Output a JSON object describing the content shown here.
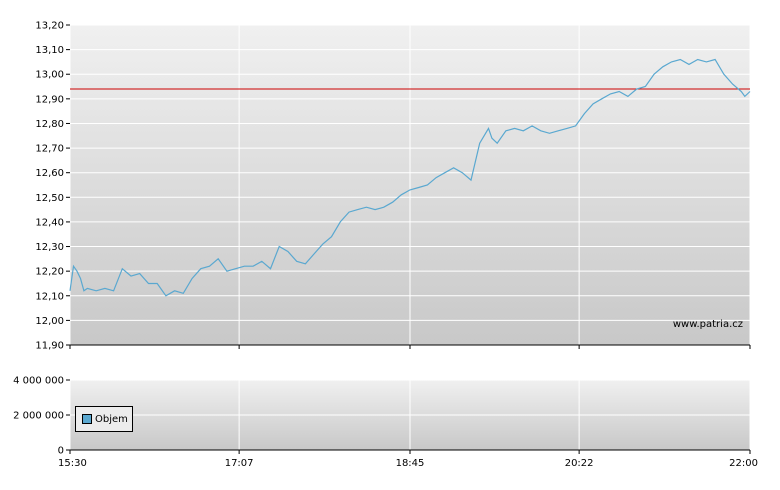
{
  "chart_data": [
    {
      "type": "line",
      "colors": {
        "line": "#5aa8d0",
        "reference": "#cc0000"
      },
      "x_ticks": [
        "15:30",
        "17:07",
        "18:45",
        "20:22",
        "22:00"
      ],
      "xlim": [
        "15:30",
        "22:00"
      ],
      "y_ticks": [
        "11,90",
        "12,00",
        "12,10",
        "12,20",
        "12,30",
        "12,40",
        "12,50",
        "12,60",
        "12,70",
        "12,80",
        "12,90",
        "13,00",
        "13,10",
        "13,20"
      ],
      "ylim": [
        11.9,
        13.2
      ],
      "reference_line": 12.94,
      "grid": true,
      "watermark": "www.patria.cz",
      "series": [
        {
          "x": [
            "15:30",
            "15:32",
            "15:34",
            "15:36",
            "15:38",
            "15:40",
            "15:45",
            "15:50",
            "15:55",
            "16:00",
            "16:05",
            "16:10",
            "16:15",
            "16:20",
            "16:25",
            "16:30",
            "16:35",
            "16:40",
            "16:45",
            "16:50",
            "16:55",
            "17:00",
            "17:05",
            "17:10",
            "17:15",
            "17:20",
            "17:25",
            "17:30",
            "17:35",
            "17:40",
            "17:45",
            "17:50",
            "17:55",
            "18:00",
            "18:05",
            "18:10",
            "18:15",
            "18:20",
            "18:25",
            "18:30",
            "18:35",
            "18:40",
            "18:45",
            "18:50",
            "18:55",
            "19:00",
            "19:05",
            "19:10",
            "19:15",
            "19:20",
            "19:25",
            "19:30",
            "19:32",
            "19:35",
            "19:40",
            "19:45",
            "19:50",
            "19:55",
            "20:00",
            "20:05",
            "20:10",
            "20:15",
            "20:20",
            "20:25",
            "20:30",
            "20:35",
            "20:40",
            "20:45",
            "20:50",
            "20:55",
            "21:00",
            "21:05",
            "21:10",
            "21:15",
            "21:20",
            "21:25",
            "21:30",
            "21:35",
            "21:40",
            "21:45",
            "21:50",
            "21:55",
            "21:57",
            "22:00"
          ],
          "y": [
            12.12,
            12.22,
            12.2,
            12.17,
            12.12,
            12.13,
            12.12,
            12.13,
            12.12,
            12.21,
            12.18,
            12.19,
            12.15,
            12.15,
            12.1,
            12.12,
            12.11,
            12.17,
            12.21,
            12.22,
            12.25,
            12.2,
            12.21,
            12.22,
            12.22,
            12.24,
            12.21,
            12.3,
            12.28,
            12.24,
            12.23,
            12.27,
            12.31,
            12.34,
            12.4,
            12.44,
            12.45,
            12.46,
            12.45,
            12.46,
            12.48,
            12.51,
            12.53,
            12.54,
            12.55,
            12.58,
            12.6,
            12.62,
            12.6,
            12.57,
            12.72,
            12.78,
            12.74,
            12.72,
            12.77,
            12.78,
            12.77,
            12.79,
            12.77,
            12.76,
            12.77,
            12.78,
            12.79,
            12.84,
            12.88,
            12.9,
            12.92,
            12.93,
            12.91,
            12.94,
            12.95,
            13.0,
            13.03,
            13.05,
            13.06,
            13.04,
            13.06,
            13.05,
            13.06,
            13.0,
            12.96,
            12.93,
            12.91,
            12.93
          ]
        }
      ]
    },
    {
      "type": "bar",
      "y_ticks": [
        "0",
        "2 000 000",
        "4 000 000"
      ],
      "ylim": [
        0,
        4000000
      ],
      "legend_placement": "bottom-left",
      "series": [
        {
          "name": "Objem",
          "color": "#5aa8d0",
          "values": []
        }
      ]
    }
  ]
}
